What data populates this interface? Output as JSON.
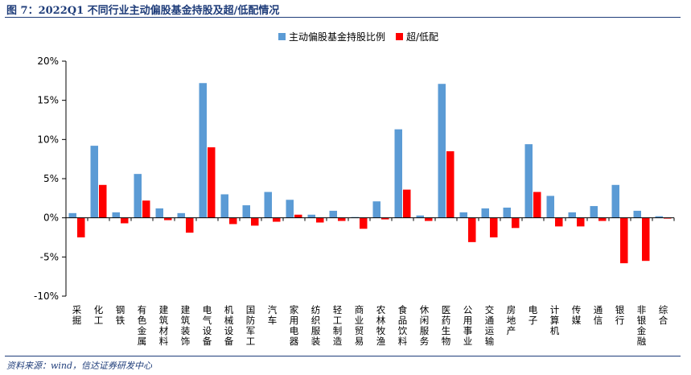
{
  "figure": {
    "title": "图 7：2022Q1 不同行业主动偏股基金持股及超/低配情况",
    "source": "资料来源：wind，信达证券研发中心"
  },
  "colors": {
    "series1": "#5b9bd5",
    "series2": "#ff0000"
  },
  "chart_data": {
    "type": "bar",
    "title": "",
    "xlabel": "",
    "ylabel": "",
    "ylim": [
      -10,
      20
    ],
    "yticks": [
      -10,
      -5,
      0,
      5,
      10,
      15,
      20
    ],
    "ytick_labels": [
      "-10%",
      "-5%",
      "0%",
      "5%",
      "10%",
      "15%",
      "20%"
    ],
    "grid": false,
    "legend_position": "top-right",
    "categories": [
      "采掘",
      "化工",
      "钢铁",
      "有色金属",
      "建筑材料",
      "建筑装饰",
      "电气设备",
      "机械设备",
      "国防军工",
      "汽车",
      "家用电器",
      "纺织服装",
      "轻工制造",
      "商业贸易",
      "农林牧渔",
      "食品饮料",
      "休闲服务",
      "医药生物",
      "公用事业",
      "交通运输",
      "房地产",
      "电子",
      "计算机",
      "传媒",
      "通信",
      "银行",
      "非银金融",
      "综合"
    ],
    "series": [
      {
        "name": "主动偏股基金持股比例",
        "values": [
          0.6,
          9.2,
          0.7,
          5.6,
          1.2,
          0.6,
          17.2,
          3.0,
          1.6,
          3.3,
          2.3,
          0.4,
          0.9,
          0.1,
          2.1,
          11.3,
          0.3,
          17.1,
          0.7,
          1.2,
          1.3,
          9.4,
          2.8,
          0.7,
          1.5,
          4.2,
          0.9,
          0.2
        ]
      },
      {
        "name": "超/低配",
        "values": [
          -2.5,
          4.2,
          -0.7,
          2.2,
          -0.3,
          -1.9,
          9.0,
          -0.8,
          -1.0,
          -0.5,
          0.4,
          -0.6,
          -0.4,
          -1.4,
          -0.2,
          3.6,
          -0.4,
          8.5,
          -3.1,
          -2.5,
          -1.3,
          3.3,
          -1.1,
          -1.1,
          -0.4,
          -5.8,
          -5.5,
          -0.1
        ]
      }
    ]
  }
}
